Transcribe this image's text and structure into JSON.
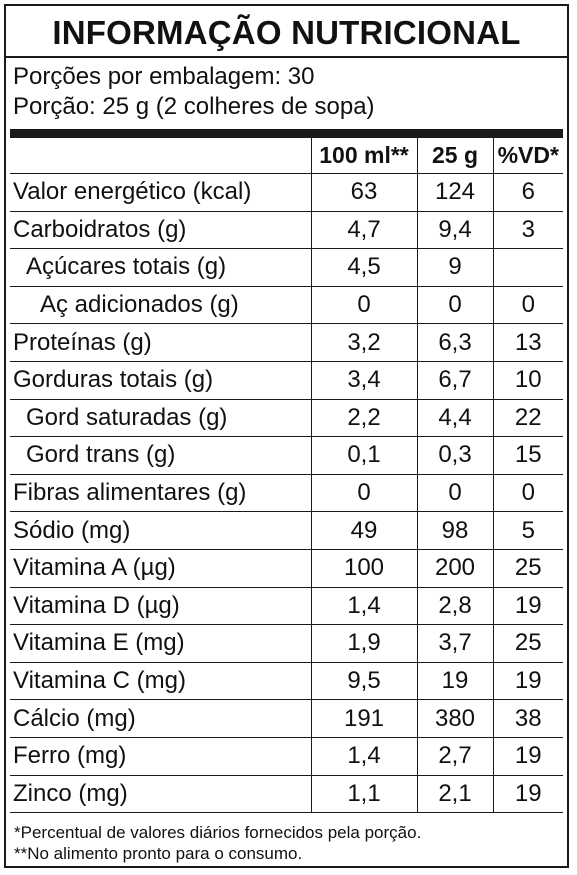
{
  "title": "INFORMAÇÃO NUTRICIONAL",
  "servings_per_package": "Porções por embalagem: 30",
  "serving_size": "Porção: 25 g (2 colheres de sopa)",
  "headers": [
    "",
    "100 ml**",
    "25 g",
    "%VD*"
  ],
  "rows": [
    {
      "name": "Valor energético (kcal)",
      "per100": "63",
      "per25": "124",
      "vd": "6"
    },
    {
      "name": "Carboidratos (g)",
      "per100": "4,7",
      "per25": "9,4",
      "vd": "3"
    },
    {
      "name": "Açúcares totais (g)",
      "per100": "4,5",
      "per25": "9",
      "vd": ""
    },
    {
      "name": "Aç adicionados (g)",
      "per100": "0",
      "per25": "0",
      "vd": "0"
    },
    {
      "name": "Proteínas (g)",
      "per100": "3,2",
      "per25": "6,3",
      "vd": "13"
    },
    {
      "name": "Gorduras totais (g)",
      "per100": "3,4",
      "per25": "6,7",
      "vd": "10"
    },
    {
      "name": "Gord saturadas (g)",
      "per100": "2,2",
      "per25": "4,4",
      "vd": "22"
    },
    {
      "name": "Gord trans (g)",
      "per100": "0,1",
      "per25": "0,3",
      "vd": "15"
    },
    {
      "name": "Fibras alimentares (g)",
      "per100": "0",
      "per25": "0",
      "vd": "0"
    },
    {
      "name": "Sódio (mg)",
      "per100": "49",
      "per25": "98",
      "vd": "5"
    },
    {
      "name": "Vitamina A (µg)",
      "per100": "100",
      "per25": "200",
      "vd": "25"
    },
    {
      "name": "Vitamina D (µg)",
      "per100": "1,4",
      "per25": "2,8",
      "vd": "19"
    },
    {
      "name": "Vitamina E (mg)",
      "per100": "1,9",
      "per25": "3,7",
      "vd": "25"
    },
    {
      "name": "Vitamina C (mg)",
      "per100": "9,5",
      "per25": "19",
      "vd": "19"
    },
    {
      "name": "Cálcio (mg)",
      "per100": "191",
      "per25": "380",
      "vd": "38"
    },
    {
      "name": "Ferro (mg)",
      "per100": "1,4",
      "per25": "2,7",
      "vd": "19"
    },
    {
      "name": "Zinco (mg)",
      "per100": "1,1",
      "per25": "2,1",
      "vd": "19"
    }
  ],
  "footnotes": [
    "*Percentual de valores diários fornecidos pela porção.",
    "**No alimento pronto para o consumo."
  ]
}
